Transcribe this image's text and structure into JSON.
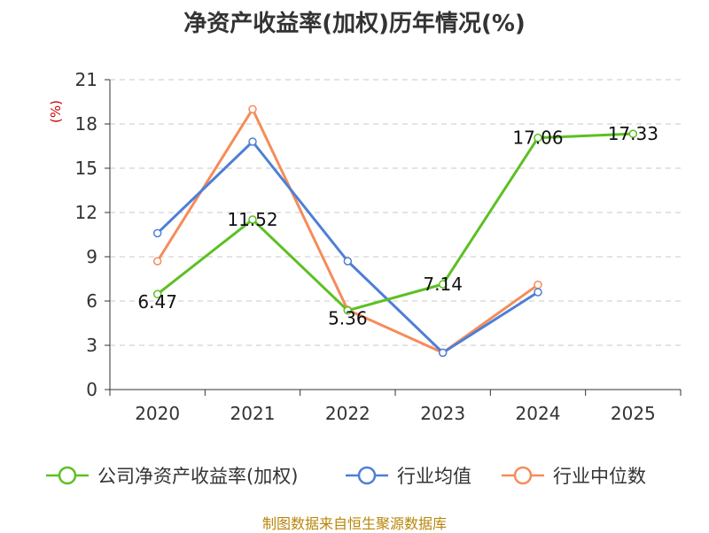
{
  "chart_data": {
    "type": "line",
    "title": "净资产收益率(加权)历年情况(%)",
    "ylabel": "(%)",
    "xlabel": "",
    "ylim": [
      0,
      21
    ],
    "yticks": [
      0,
      3,
      6,
      9,
      12,
      15,
      18,
      21
    ],
    "grid": true,
    "legend_position": "bottom",
    "categories": [
      "2020",
      "2021",
      "2022",
      "2023",
      "2024",
      "2025"
    ],
    "series": [
      {
        "name": "公司净资产收益率(加权)",
        "color": "#5cc022",
        "values": [
          6.47,
          11.52,
          5.36,
          7.14,
          17.06,
          17.33
        ],
        "show_labels": true
      },
      {
        "name": "行业均值",
        "color": "#4e7fd6",
        "values": [
          10.6,
          16.8,
          8.7,
          2.5,
          6.6,
          null
        ],
        "show_labels": false
      },
      {
        "name": "行业中位数",
        "color": "#f58c5a",
        "values": [
          8.7,
          19.0,
          5.4,
          2.5,
          7.1,
          null
        ],
        "show_labels": false
      }
    ]
  },
  "source_text": "制图数据来自恒生聚源数据库"
}
